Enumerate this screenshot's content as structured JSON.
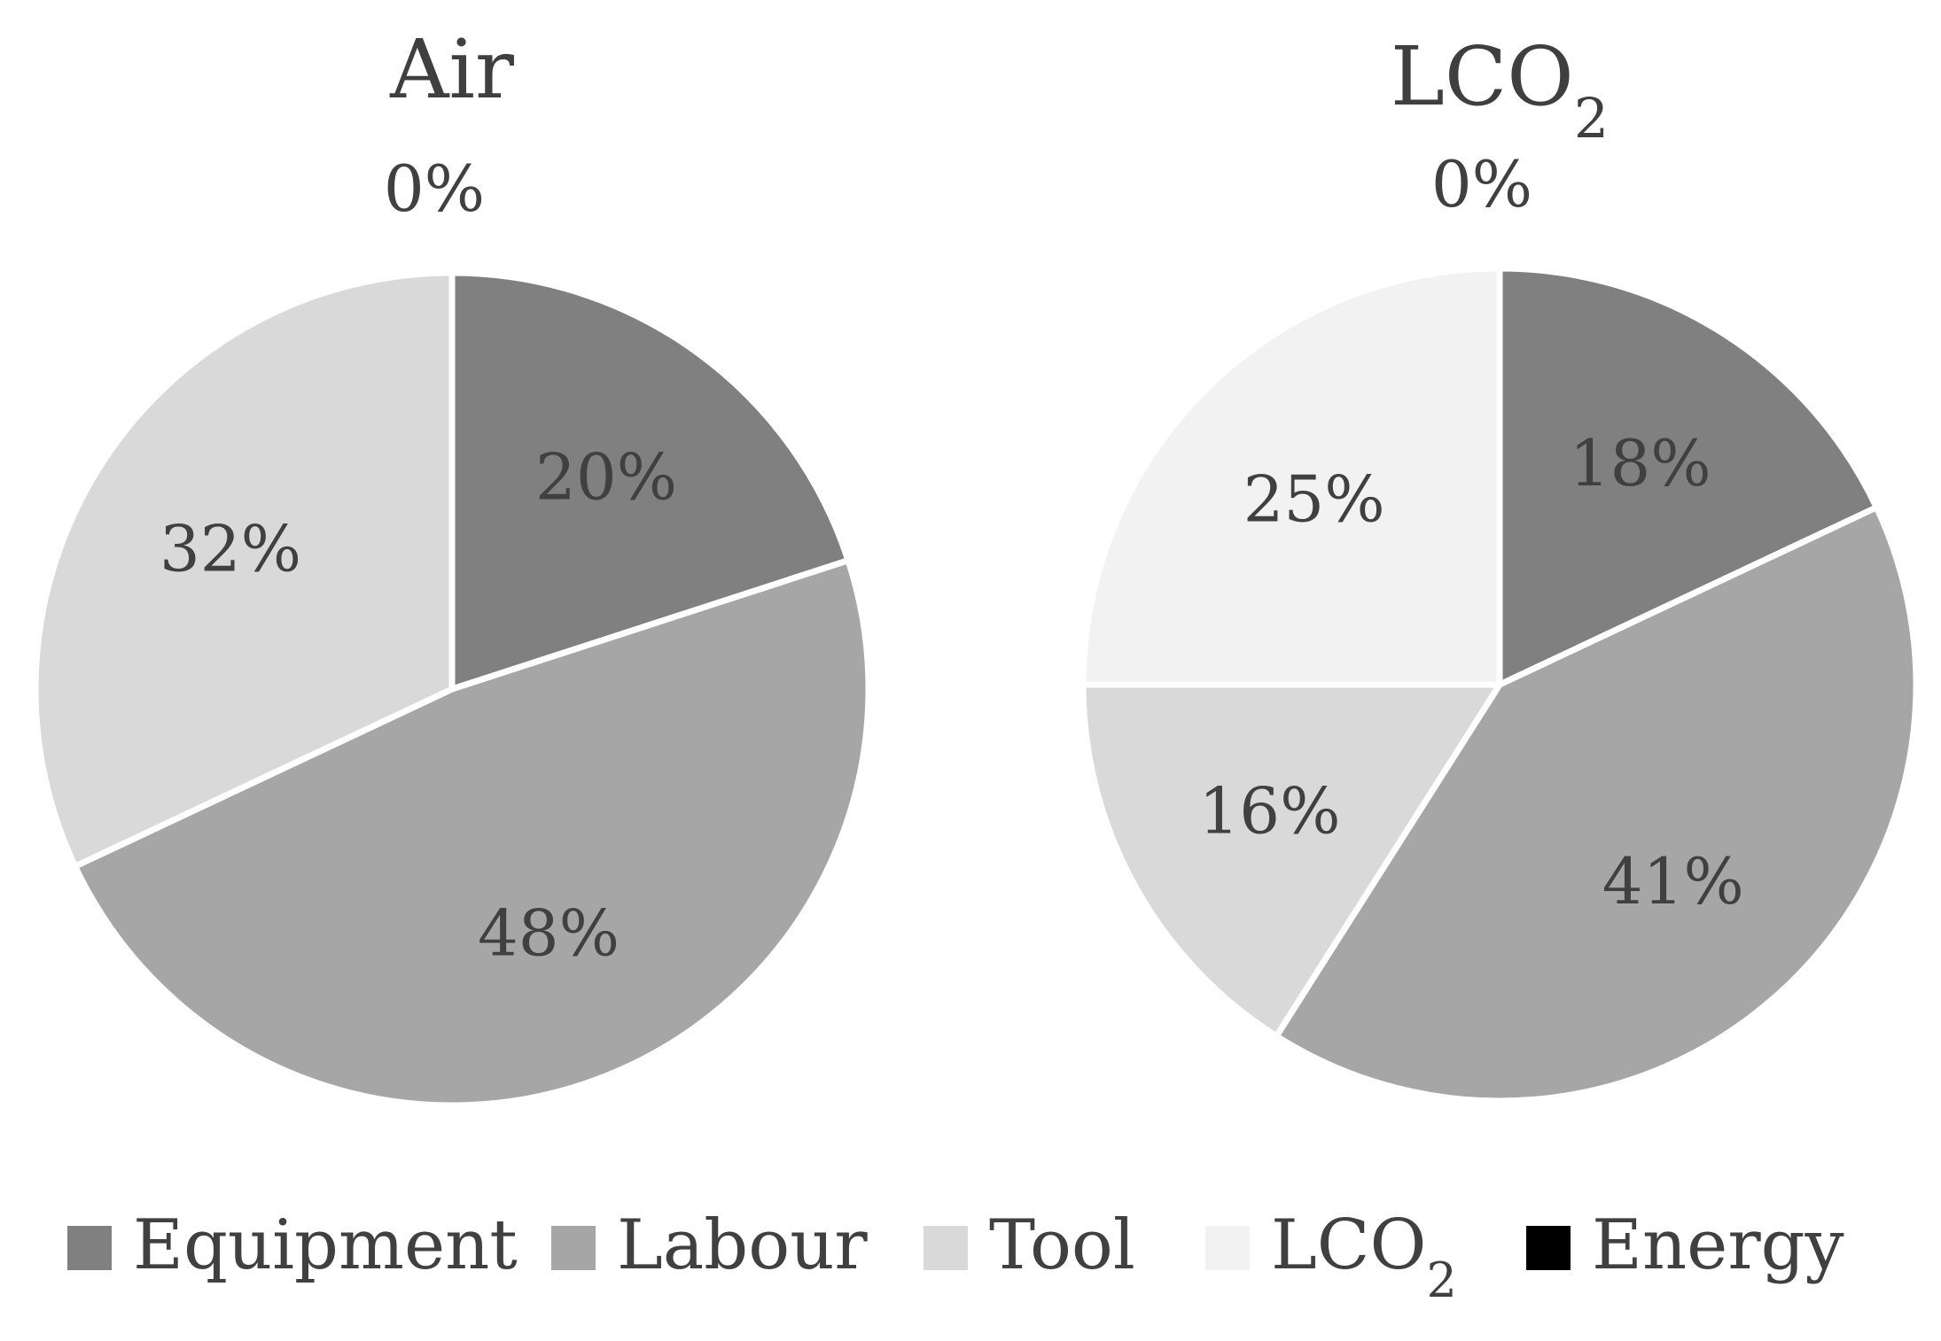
{
  "chart_data": [
    {
      "type": "pie",
      "title": "Air",
      "categories": [
        "Equipment",
        "Labour",
        "Tool",
        "LCO2",
        "Energy"
      ],
      "values": [
        20,
        48,
        32,
        0,
        0
      ],
      "value_labels": [
        "20%",
        "48%",
        "32%",
        "",
        "0%"
      ],
      "colors": [
        "#808080",
        "#a6a6a6",
        "#d9d9d9",
        "#f2f2f2",
        "#000000"
      ],
      "legend": "bottom"
    },
    {
      "type": "pie",
      "title": "LCO2",
      "categories": [
        "Equipment",
        "Labour",
        "Tool",
        "LCO2",
        "Energy"
      ],
      "values": [
        18,
        41,
        16,
        25,
        0
      ],
      "value_labels": [
        "18%",
        "41%",
        "16%",
        "25%",
        "0%"
      ],
      "colors": [
        "#808080",
        "#a6a6a6",
        "#d9d9d9",
        "#f2f2f2",
        "#000000"
      ],
      "legend": "bottom"
    }
  ],
  "legend": {
    "items": [
      {
        "label": "Equipment",
        "color": "#808080"
      },
      {
        "label": "Labour",
        "color": "#a6a6a6"
      },
      {
        "label": "Tool",
        "color": "#d9d9d9"
      },
      {
        "label": "LCO2",
        "color": "#f2f2f2"
      },
      {
        "label": "Energy",
        "color": "#000000"
      }
    ]
  }
}
